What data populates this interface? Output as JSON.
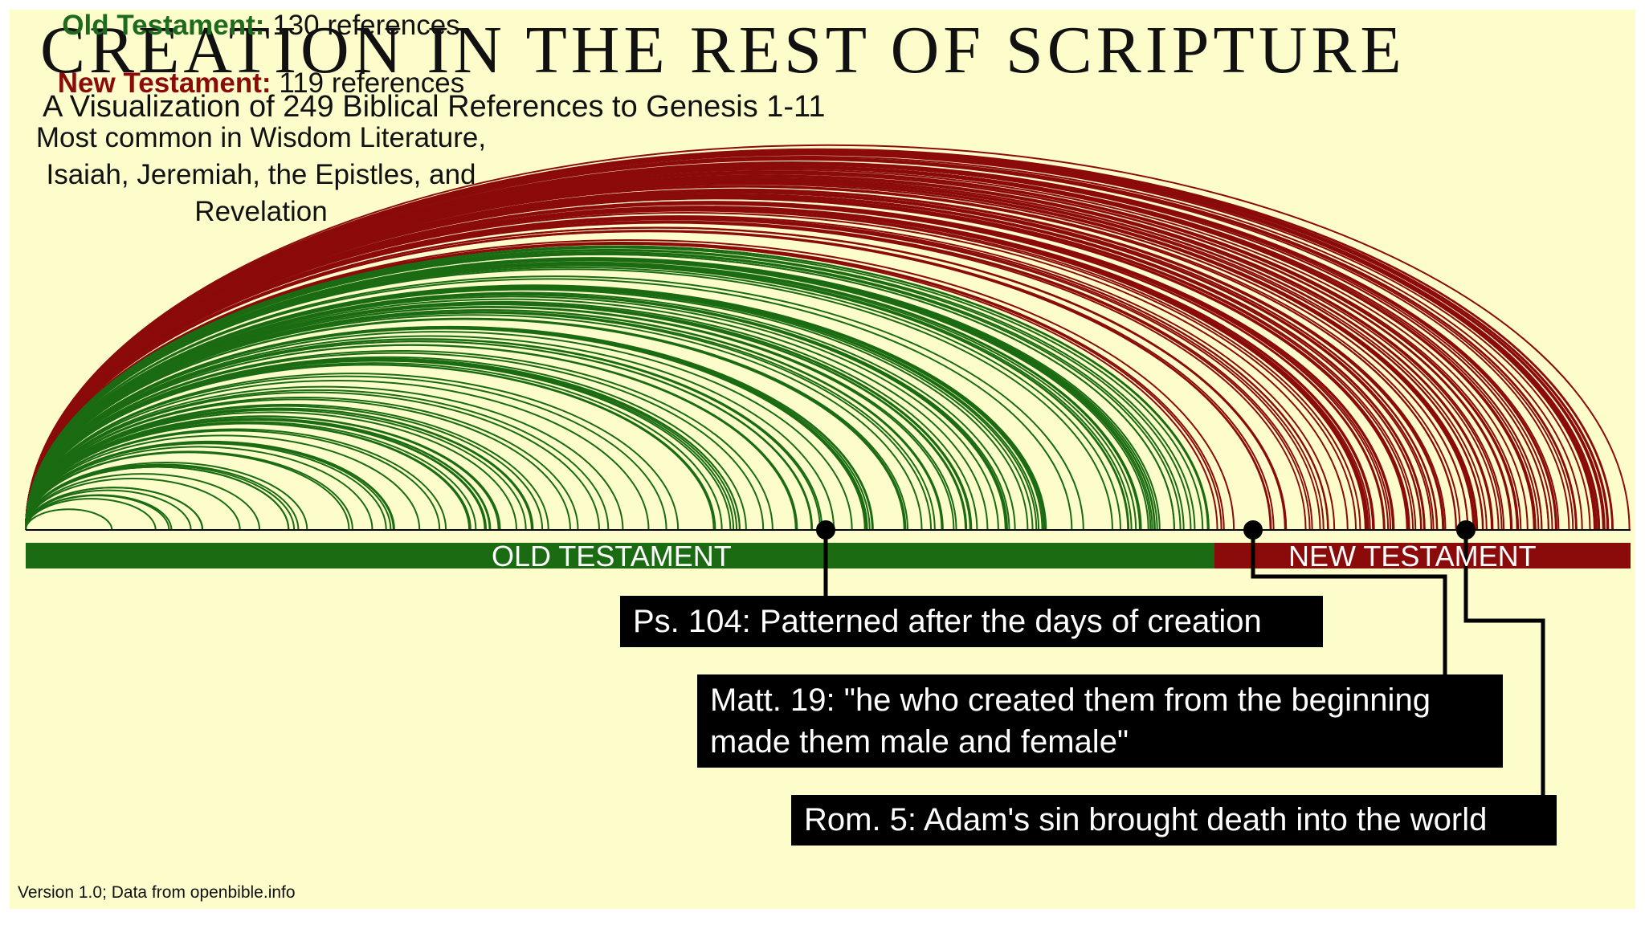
{
  "header": {
    "title": "Creation in the Rest of Scripture",
    "subtitle": "A Visualization of 249 Biblical References to Genesis 1-11"
  },
  "bar": {
    "old": "OLD TESTAMENT",
    "new": "NEW TESTAMENT"
  },
  "summary": {
    "old_label": "Old Testament:",
    "old_count": "130 references",
    "new_label": "New Testament:",
    "new_count": "119 references",
    "note": [
      "Most common in Wisdom Literature,",
      "Isaiah, Jeremiah, the Epistles, and",
      "Revelation"
    ]
  },
  "callouts": [
    {
      "lines": [
        "Ps. 104: Patterned after the days of creation"
      ]
    },
    {
      "lines": [
        "Matt. 19: \"he who created them from the beginning",
        "made them male and female\""
      ]
    },
    {
      "lines": [
        "Rom. 5: Adam's sin brought death into the world"
      ]
    }
  ],
  "footer": "Version 1.0; Data from openbible.info"
}
